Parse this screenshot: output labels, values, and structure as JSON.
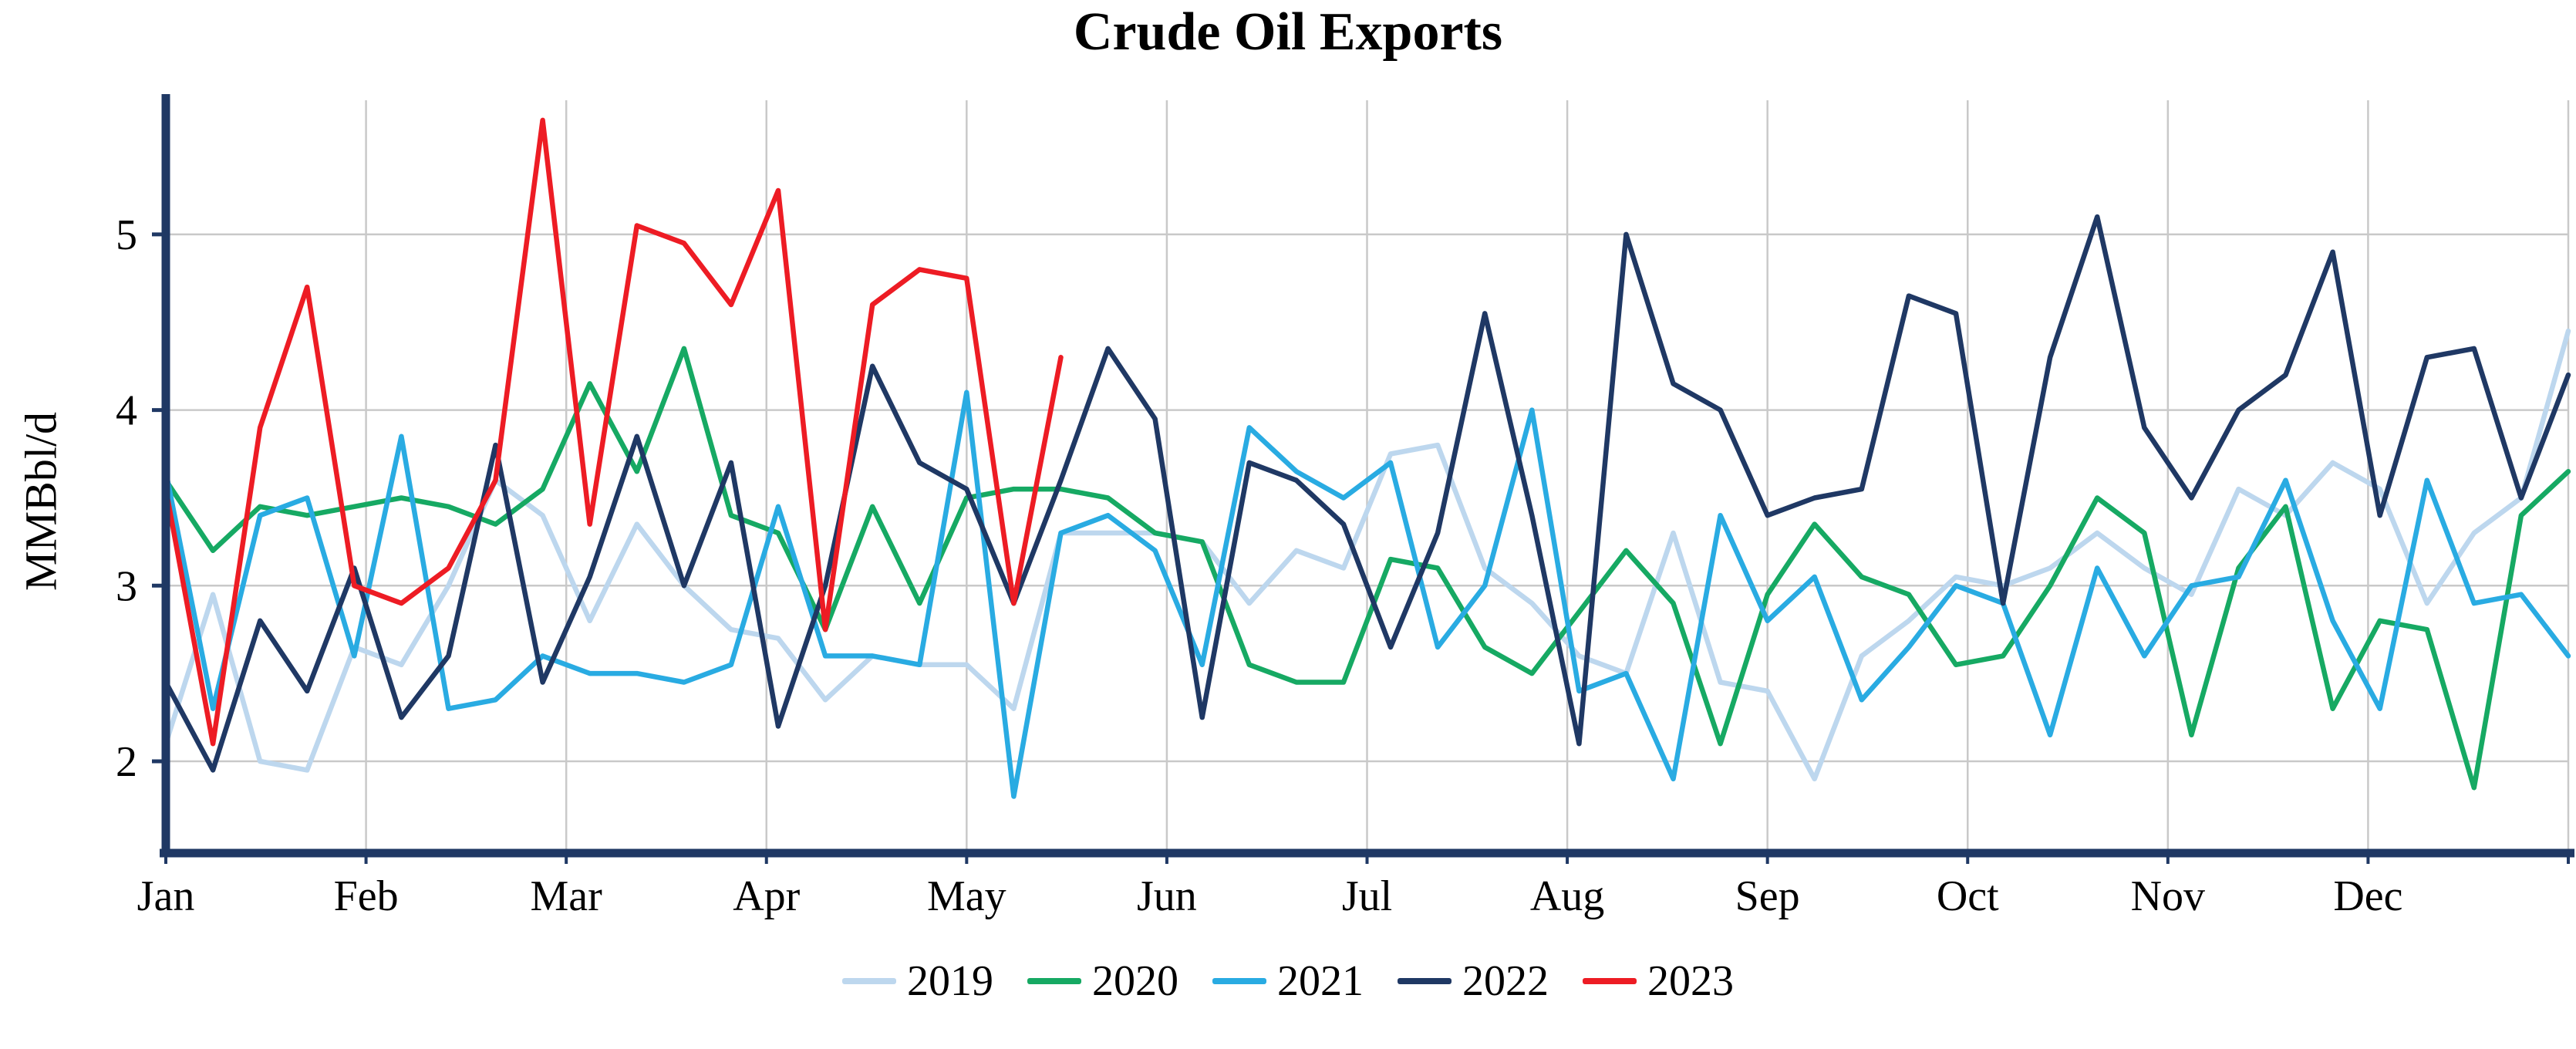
{
  "chart_data": {
    "type": "line",
    "title": "Crude Oil Exports",
    "ylabel": "MMBbl/d",
    "xlabel": "",
    "x_unit": "week-of-year",
    "weeks_per_year": 52,
    "x_tick_labels": [
      "Jan",
      "Feb",
      "Mar",
      "Apr",
      "May",
      "Jun",
      "Jul",
      "Aug",
      "Sep",
      "Oct",
      "Nov",
      "Dec"
    ],
    "y_ticks": [
      2,
      3,
      4,
      5
    ],
    "ylim": [
      1.45,
      5.8
    ],
    "grid": true,
    "legend_position": "bottom",
    "series": [
      {
        "name": "2019",
        "color": "#bdd7ee",
        "values": [
          2.1,
          2.95,
          2.0,
          1.95,
          2.65,
          2.55,
          3.0,
          3.6,
          3.4,
          2.8,
          3.35,
          3.0,
          2.75,
          2.7,
          2.35,
          2.6,
          2.55,
          2.55,
          2.3,
          3.3,
          3.3,
          3.3,
          3.25,
          2.9,
          3.2,
          3.1,
          3.75,
          3.8,
          3.1,
          2.9,
          2.6,
          2.5,
          3.3,
          2.45,
          2.4,
          1.9,
          2.6,
          2.8,
          3.05,
          3.0,
          3.1,
          3.3,
          3.1,
          2.95,
          3.55,
          3.4,
          3.7,
          3.55,
          2.9,
          3.3,
          3.5,
          4.45
        ]
      },
      {
        "name": "2020",
        "color": "#16a963",
        "values": [
          3.6,
          3.2,
          3.45,
          3.4,
          3.45,
          3.5,
          3.45,
          3.35,
          3.55,
          4.15,
          3.65,
          4.35,
          3.4,
          3.3,
          2.75,
          3.45,
          2.9,
          3.5,
          3.55,
          3.55,
          3.5,
          3.3,
          3.25,
          2.55,
          2.45,
          2.45,
          3.15,
          3.1,
          2.65,
          2.5,
          2.85,
          3.2,
          2.9,
          2.1,
          2.95,
          3.35,
          3.05,
          2.95,
          2.55,
          2.6,
          3.0,
          3.5,
          3.3,
          2.15,
          3.1,
          3.45,
          2.3,
          2.8,
          2.75,
          1.85,
          3.4,
          3.65
        ]
      },
      {
        "name": "2021",
        "color": "#29abe2",
        "values": [
          3.65,
          2.3,
          3.4,
          3.5,
          2.6,
          3.85,
          2.3,
          2.35,
          2.6,
          2.5,
          2.5,
          2.45,
          2.55,
          3.45,
          2.6,
          2.6,
          2.55,
          4.1,
          1.8,
          3.3,
          3.4,
          3.2,
          2.55,
          3.9,
          3.65,
          3.5,
          3.7,
          2.65,
          3.0,
          4.0,
          2.4,
          2.5,
          1.9,
          3.4,
          2.8,
          3.05,
          2.35,
          2.65,
          3.0,
          2.9,
          2.15,
          3.1,
          2.6,
          3.0,
          3.05,
          3.6,
          2.8,
          2.3,
          3.6,
          2.9,
          2.95,
          2.6
        ]
      },
      {
        "name": "2022",
        "color": "#1f3864",
        "values": [
          2.45,
          1.95,
          2.8,
          2.4,
          3.1,
          2.25,
          2.6,
          3.8,
          2.45,
          3.05,
          3.85,
          3.0,
          3.7,
          2.2,
          3.0,
          4.25,
          3.7,
          3.55,
          2.9,
          3.6,
          4.35,
          3.95,
          2.25,
          3.7,
          3.6,
          3.35,
          2.65,
          3.3,
          4.55,
          3.4,
          2.1,
          5.0,
          4.15,
          4.0,
          3.4,
          3.5,
          3.55,
          4.65,
          4.55,
          2.9,
          4.3,
          5.1,
          3.9,
          3.5,
          4.0,
          4.2,
          4.9,
          3.4,
          4.3,
          4.35,
          3.5,
          4.2
        ]
      },
      {
        "name": "2023",
        "color": "#ed1c24",
        "values": [
          3.55,
          2.1,
          3.9,
          4.7,
          3.0,
          2.9,
          3.1,
          3.6,
          5.65,
          3.35,
          5.05,
          4.95,
          4.6,
          5.25,
          2.75,
          4.6,
          4.8,
          4.75,
          2.9,
          4.3
        ]
      }
    ]
  },
  "colors": {
    "axis": "#1f3864",
    "grid": "#c9c9c9",
    "background": "#ffffff",
    "text": "#000000"
  }
}
